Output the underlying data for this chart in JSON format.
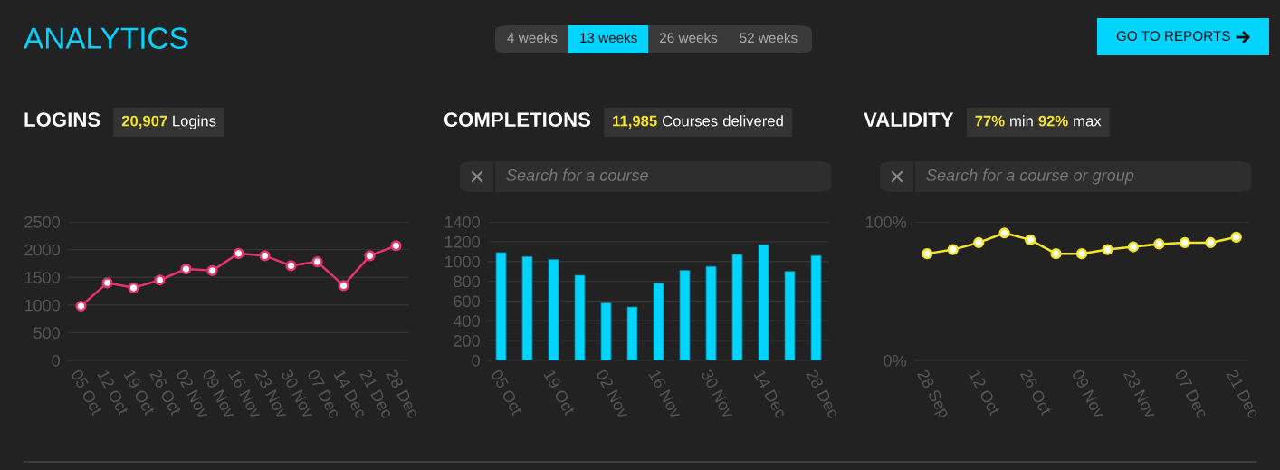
{
  "chart_data": [
    {
      "type": "other",
      "title": "ANALYTICS",
      "annotations": [
        "4 weeks",
        "13 weeks",
        "26 weeks",
        "52 weeks",
        "GO TO REPORTS"
      ]
    },
    {
      "type": "line",
      "title": "LOGINS",
      "subtitle": "20,907 Logins",
      "categories": [
        "05 Oct",
        "12 Oct",
        "19 Oct",
        "26 Oct",
        "02 Nov",
        "09 Nov",
        "16 Nov",
        "23 Nov",
        "30 Nov",
        "07 Dec",
        "14 Dec",
        "21 Dec",
        "28 Dec"
      ],
      "series": [
        {
          "color": "#e8336d",
          "values": [
            980,
            1400,
            1310,
            1450,
            1650,
            1620,
            1930,
            1890,
            1710,
            1780,
            1350,
            1890,
            2070
          ]
        }
      ],
      "ylim": [
        0,
        2500
      ],
      "yticks": [
        0,
        500,
        1000,
        1500,
        2000,
        2500
      ],
      "grid": "y",
      "marker": "circle",
      "line_style": "solid"
    },
    {
      "type": "bar",
      "title": "COMPLETIONS",
      "subtitle": "11,985 Courses delivered",
      "annotations": [
        "Search for a course"
      ],
      "categories": [
        "05 Oct",
        null,
        "19 Oct",
        null,
        "02 Nov",
        null,
        "16 Nov",
        null,
        "30 Nov",
        null,
        "14 Dec",
        null,
        "28 Dec"
      ],
      "series": [
        {
          "color": "#00d4ff",
          "values": [
            1090,
            1050,
            1020,
            860,
            580,
            540,
            780,
            910,
            950,
            1070,
            1170,
            900,
            1060
          ]
        }
      ],
      "ylim": [
        0,
        1400
      ],
      "yticks": [
        0,
        200,
        400,
        600,
        800,
        1000,
        1200,
        1400
      ],
      "grid": "y"
    },
    {
      "type": "line",
      "title": "VALIDITY",
      "subtitle": "77% min 92% max",
      "annotations": [
        "Search for a course or group"
      ],
      "categories": [
        "28 Sep",
        null,
        "12 Oct",
        null,
        "26 Oct",
        null,
        "09 Nov",
        null,
        "23 Nov",
        null,
        "07 Dec",
        null,
        "21 Dec"
      ],
      "series": [
        {
          "color": "#f5e52a",
          "values": [
            77,
            80,
            85,
            92,
            87,
            77,
            77,
            80,
            82,
            84,
            85,
            85,
            89
          ]
        }
      ],
      "ylim": [
        0,
        100
      ],
      "yticks": [
        {
          "value": 0,
          "label": "0%"
        },
        {
          "value": 100,
          "label": "100%"
        }
      ],
      "grid": "y",
      "marker": "circle",
      "line_style": "solid"
    }
  ]
}
